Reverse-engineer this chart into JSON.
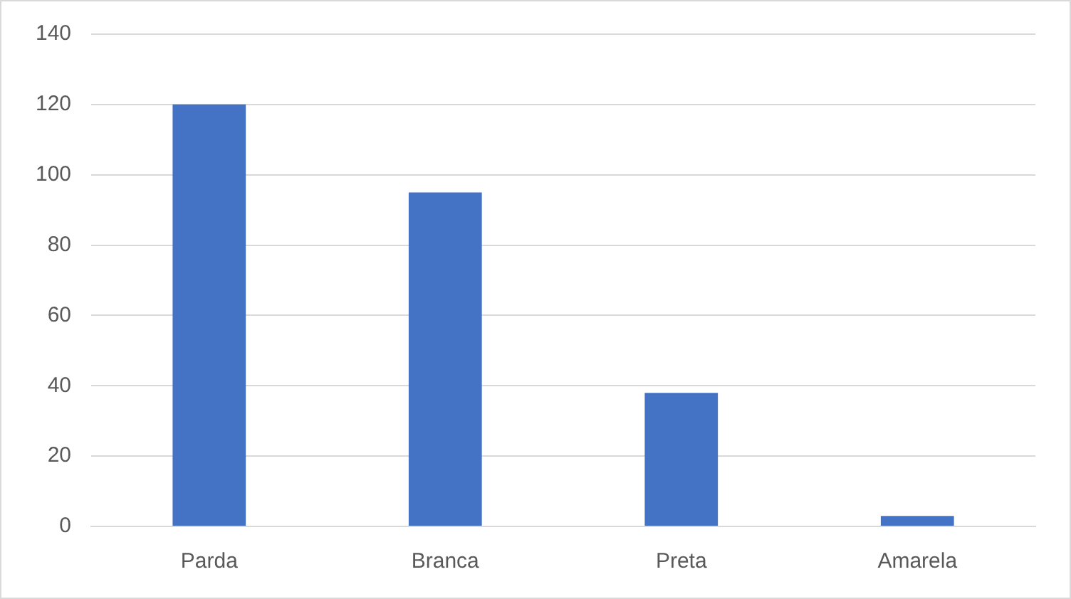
{
  "chart_data": {
    "type": "bar",
    "categories": [
      "Parda",
      "Branca",
      "Preta",
      "Amarela"
    ],
    "values": [
      120,
      95,
      38,
      3
    ],
    "color": "#4472c4",
    "ylim": [
      0,
      140
    ],
    "yticks": [
      0,
      20,
      40,
      60,
      80,
      100,
      120,
      140
    ],
    "grid": "y"
  }
}
